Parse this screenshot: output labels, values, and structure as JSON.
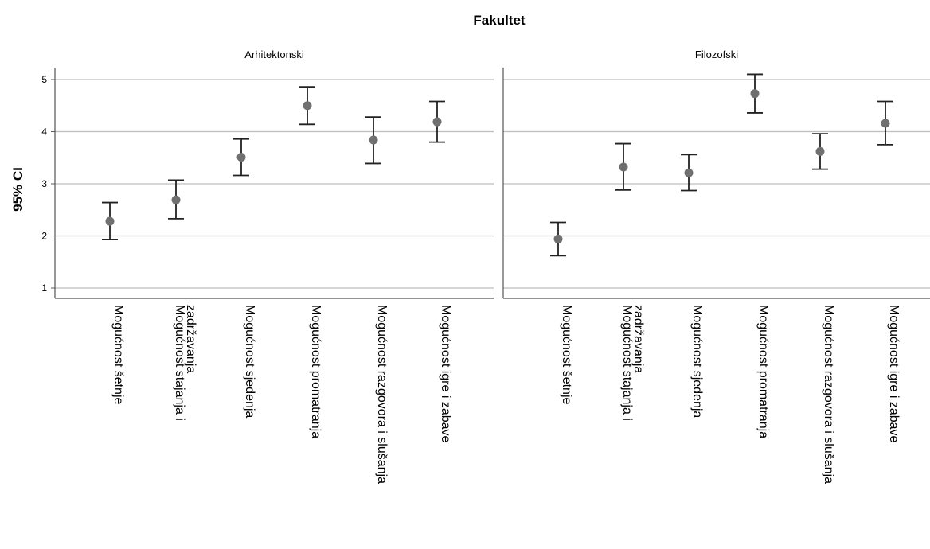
{
  "chart_data": {
    "type": "scatter",
    "title": "Fakultet",
    "ylabel": "95% CI",
    "xlabel": "",
    "ylim": [
      0.8,
      5.2
    ],
    "yticks": [
      1,
      2,
      3,
      4,
      5
    ],
    "grid": true,
    "point_color": "#707070",
    "errorbar_color": "#222222",
    "categories": [
      [
        "Mogućnost šetnje"
      ],
      [
        "Mogućnost stajanja i",
        "zadržavanja"
      ],
      [
        "Mogućnost sjedenja"
      ],
      [
        "Mogućnost promatranja"
      ],
      [
        "Mogućnost razgovora i slušanja"
      ],
      [
        "Mogućnost igre i zabave"
      ]
    ],
    "panels": [
      {
        "name": "Arhitektonski",
        "mean": [
          2.28,
          2.69,
          3.51,
          4.5,
          3.84,
          4.19
        ],
        "lower": [
          1.93,
          2.33,
          3.16,
          4.14,
          3.39,
          3.8
        ],
        "upper": [
          2.64,
          3.07,
          3.86,
          4.86,
          4.28,
          4.58
        ]
      },
      {
        "name": "Filozofski",
        "mean": [
          1.94,
          3.32,
          3.21,
          4.73,
          3.62,
          4.16
        ],
        "lower": [
          1.62,
          2.88,
          2.87,
          4.36,
          3.28,
          3.75
        ],
        "upper": [
          2.26,
          3.77,
          3.56,
          5.1,
          3.96,
          4.58
        ]
      }
    ]
  }
}
